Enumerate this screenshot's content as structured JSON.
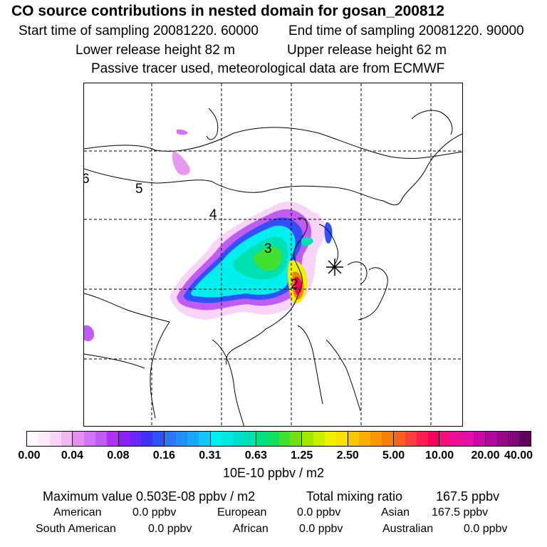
{
  "header": {
    "title": "CO  source contributions in nested domain for gosan_200812",
    "start_label": "Start time of sampling 20081220. 60000",
    "end_label": "End time of sampling 20081220. 90000",
    "lower_label": "Lower release height   82 m",
    "upper_label": "Upper release height   62 m",
    "subtitle": "Passive tracer used, meteorological data are from ECMWF"
  },
  "map": {
    "receptor_marker": "asterisk-icon",
    "contour_labels": [
      "6",
      "5",
      "4",
      "3",
      "2"
    ]
  },
  "colorbar": {
    "ticks": [
      "0.00",
      "0.04",
      "0.08",
      "0.16",
      "0.31",
      "0.63",
      "1.25",
      "2.50",
      "5.00",
      "10.00",
      "20.00",
      "40.00"
    ],
    "colors": [
      "#fff8fd",
      "#fcecfa",
      "#f8d4f6",
      "#f0b8f0",
      "#e48ef0",
      "#d474f4",
      "#c05cf4",
      "#b030f8",
      "#8a20f8",
      "#6a28f8",
      "#4030f8",
      "#3050f8",
      "#2a78f8",
      "#2090f8",
      "#18a8f8",
      "#10c8f8",
      "#00f0f0",
      "#00e8e0",
      "#00e0c8",
      "#00e0b0",
      "#00e080",
      "#10e060",
      "#40e030",
      "#70e010",
      "#a0e800",
      "#c8f000",
      "#f0f000",
      "#f8e000",
      "#f8c800",
      "#f8b000",
      "#f89800",
      "#f88000",
      "#f86020",
      "#f84040",
      "#f82050",
      "#f80060",
      "#f01080",
      "#e81098",
      "#e010a8",
      "#c808a8",
      "#b00898",
      "#980888",
      "#800878",
      "#600058"
    ],
    "unit_label": "10E-10 ppbv / m2"
  },
  "summary": {
    "max_label": "Maximum value  0.503E-08 ppbv / m2",
    "total_label": "Total mixing ratio",
    "total_value": "167.5 ppbv",
    "american_label": "American",
    "american_value": "0.0 ppbv",
    "european_label": "European",
    "european_value": "0.0 ppbv",
    "asian_label": "Asian",
    "asian_value": "167.5 ppbv",
    "south_american_label": "South American",
    "south_american_value": "0.0 ppbv",
    "african_label": "African",
    "african_value": "0.0 ppbv",
    "australian_label": "Australian",
    "australian_value": "0.0 ppbv"
  }
}
